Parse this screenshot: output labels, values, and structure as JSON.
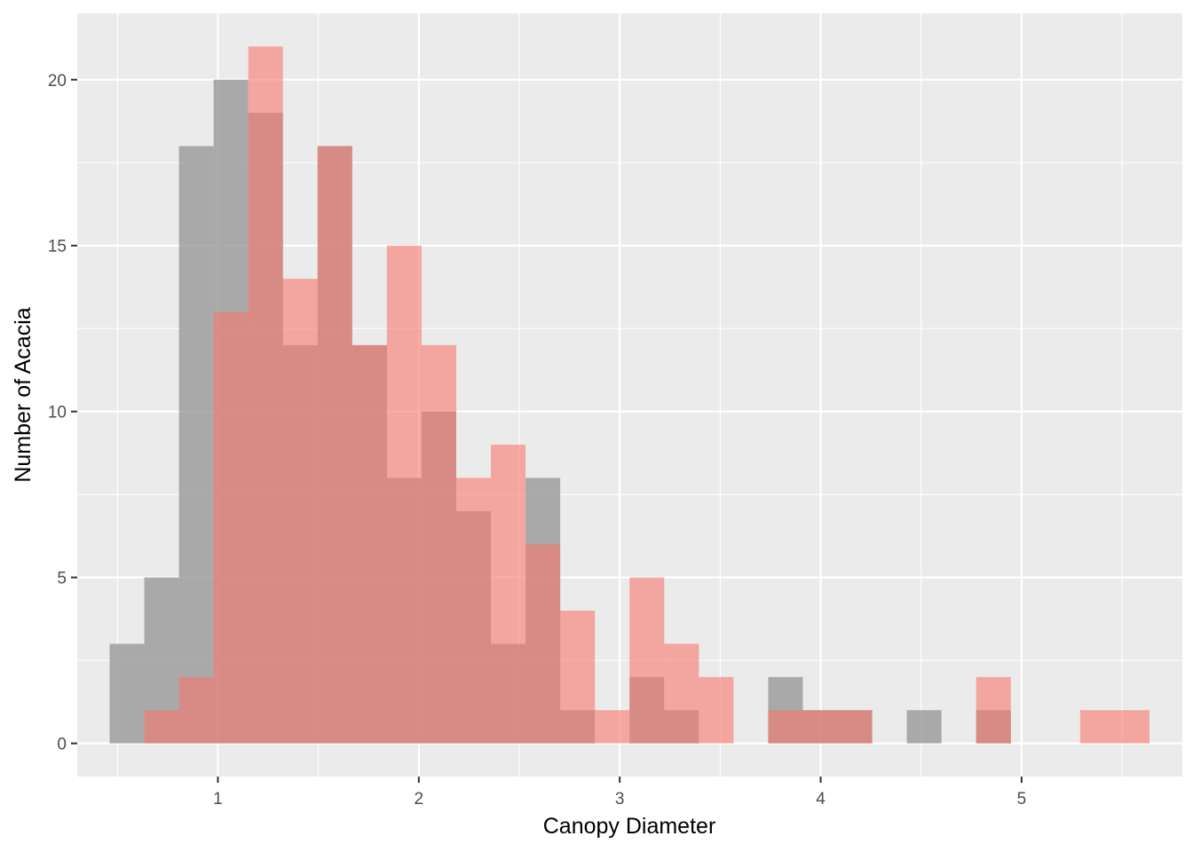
{
  "chart_data": {
    "type": "bar",
    "subtype": "overlapping-histogram",
    "title": "",
    "xlabel": "Canopy Diameter",
    "ylabel": "Number of Acacia",
    "xlim": [
      0.3,
      5.8
    ],
    "ylim": [
      -1,
      22
    ],
    "x_ticks": [
      1,
      2,
      3,
      4,
      5
    ],
    "y_ticks": [
      0,
      5,
      10,
      15,
      20
    ],
    "grid": true,
    "legend": "none",
    "bin_width": 0.1725,
    "bin_centers": [
      0.5475,
      0.72,
      0.8925,
      1.065,
      1.2375,
      1.41,
      1.5825,
      1.755,
      1.9275,
      2.1,
      2.2725,
      2.445,
      2.6175,
      2.79,
      2.9625,
      3.135,
      3.3075,
      3.48,
      3.6525,
      3.825,
      3.9975,
      4.17,
      4.3425,
      4.515,
      4.6875,
      4.86,
      5.0325,
      5.205,
      5.3775,
      5.55
    ],
    "series": [
      {
        "color": "#999999",
        "opacity": 0.8,
        "values": [
          3,
          5,
          18,
          20,
          19,
          12,
          18,
          12,
          8,
          10,
          7,
          3,
          8,
          1,
          0,
          2,
          1,
          0,
          0,
          2,
          1,
          1,
          0,
          1,
          0,
          1,
          0,
          0,
          0,
          0
        ]
      },
      {
        "color": "#f8766d",
        "opacity": 0.6,
        "values": [
          0,
          1,
          2,
          13,
          21,
          14,
          18,
          12,
          15,
          12,
          8,
          9,
          6,
          4,
          1,
          5,
          3,
          2,
          0,
          1,
          1,
          1,
          0,
          0,
          0,
          2,
          0,
          0,
          1,
          1
        ]
      }
    ]
  }
}
